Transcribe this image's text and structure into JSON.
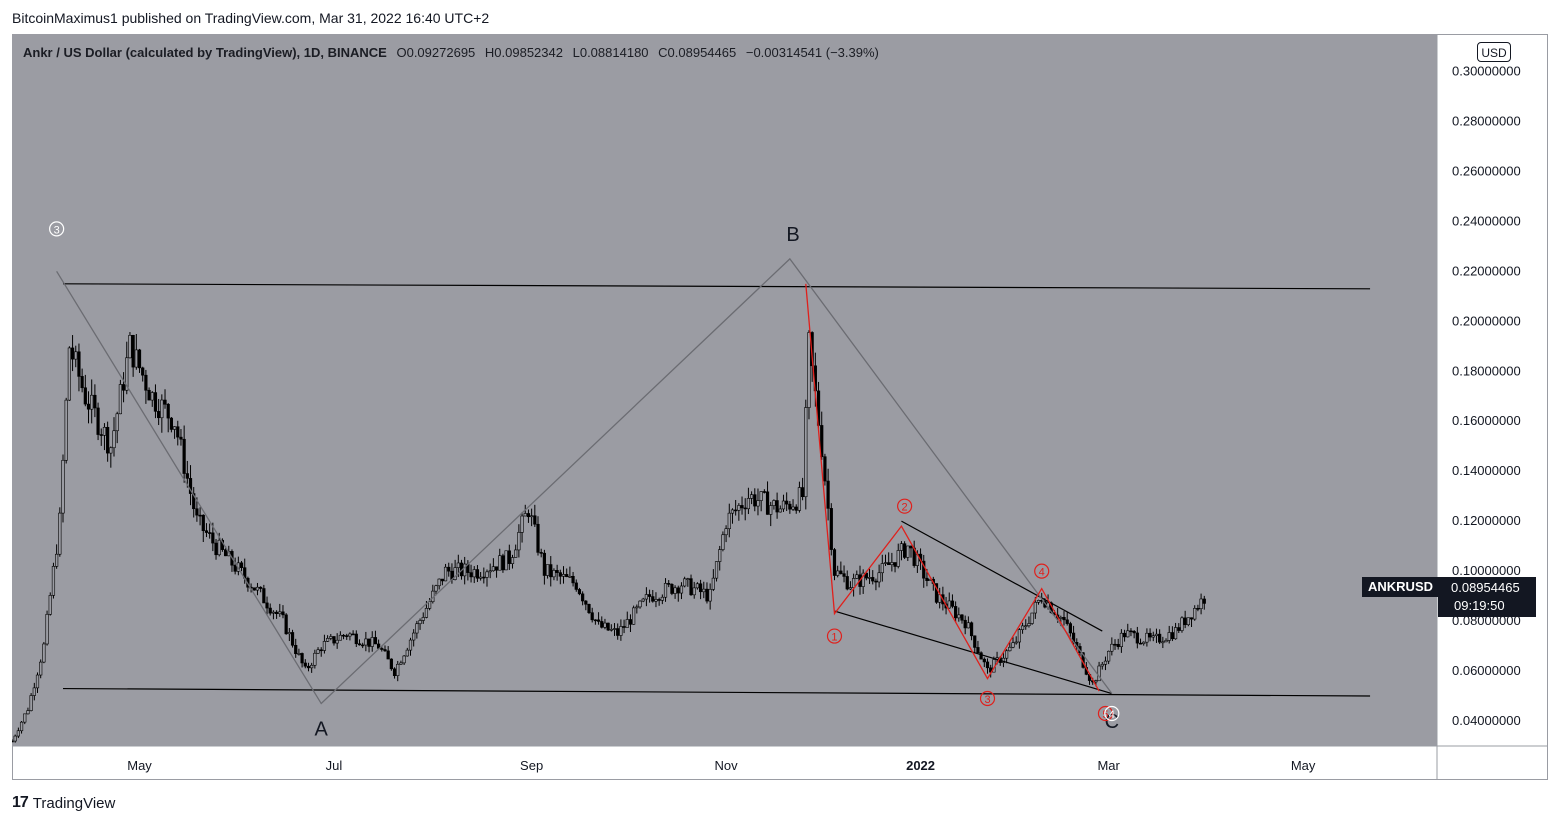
{
  "header": {
    "publish_text": "BitcoinMaximus1 published on TradingView.com, Mar 31, 2022 16:40 UTC+2"
  },
  "legend": {
    "symbol": "Ankr / US Dollar (calculated by TradingView), 1D, BINANCE",
    "open_label": "O",
    "open": "0.09272695",
    "high_label": "H",
    "high": "0.09852342",
    "low_label": "L",
    "low": "0.08814180",
    "close_label": "C",
    "close": "0.08954465",
    "change": "−0.00314541 (−3.39%)"
  },
  "currency_button": "USD",
  "last_price": {
    "symbol": "ANKRUSD",
    "value": "0.08954465",
    "countdown": "09:19:50"
  },
  "footer": {
    "logo_glyph": "17",
    "brand": "TradingView"
  },
  "colors": {
    "plot_bg": "#9b9ca3",
    "candle": "#000000",
    "red_wave": "#e0201c",
    "grey_path": "#6b6c72",
    "trendline": "#000000"
  },
  "chart_data": {
    "type": "candlestick",
    "symbol": "ANKRUSD",
    "interval": "1D",
    "x_range": [
      "2021-03-22",
      "2022-06-12"
    ],
    "ylim": [
      0.03,
      0.315
    ],
    "y_ticks": [
      "0.04000000",
      "0.06000000",
      "0.08000000",
      "0.10000000",
      "0.12000000",
      "0.14000000",
      "0.16000000",
      "0.18000000",
      "0.20000000",
      "0.22000000",
      "0.24000000",
      "0.26000000",
      "0.28000000",
      "0.30000000"
    ],
    "x_ticks": [
      {
        "label": "May",
        "date": "2021-05-01"
      },
      {
        "label": "Jul",
        "date": "2021-07-01"
      },
      {
        "label": "Sep",
        "date": "2021-09-01"
      },
      {
        "label": "Nov",
        "date": "2021-11-01"
      },
      {
        "label": "2022",
        "date": "2022-01-01"
      },
      {
        "label": "Mar",
        "date": "2022-03-01"
      },
      {
        "label": "May",
        "date": "2022-05-01"
      }
    ],
    "price_path": [
      [
        "2021-03-22",
        0.032
      ],
      [
        "2021-03-27",
        0.045
      ],
      [
        "2021-04-01",
        0.07
      ],
      [
        "2021-04-06",
        0.12
      ],
      [
        "2021-04-09",
        0.19
      ],
      [
        "2021-04-14",
        0.17
      ],
      [
        "2021-04-22",
        0.15
      ],
      [
        "2021-04-28",
        0.19
      ],
      [
        "2021-05-05",
        0.17
      ],
      [
        "2021-05-12",
        0.16
      ],
      [
        "2021-05-19",
        0.12
      ],
      [
        "2021-05-25",
        0.11
      ],
      [
        "2021-06-05",
        0.095
      ],
      [
        "2021-06-15",
        0.08
      ],
      [
        "2021-06-22",
        0.06
      ],
      [
        "2021-06-27",
        0.07
      ],
      [
        "2021-07-05",
        0.075
      ],
      [
        "2021-07-15",
        0.07
      ],
      [
        "2021-07-20",
        0.06
      ],
      [
        "2021-07-27",
        0.078
      ],
      [
        "2021-08-05",
        0.1
      ],
      [
        "2021-08-15",
        0.1
      ],
      [
        "2021-08-25",
        0.105
      ],
      [
        "2021-08-31",
        0.125
      ],
      [
        "2021-09-05",
        0.1
      ],
      [
        "2021-09-15",
        0.095
      ],
      [
        "2021-09-22",
        0.078
      ],
      [
        "2021-09-28",
        0.075
      ],
      [
        "2021-10-08",
        0.09
      ],
      [
        "2021-10-18",
        0.095
      ],
      [
        "2021-10-27",
        0.09
      ],
      [
        "2021-11-01",
        0.12
      ],
      [
        "2021-11-08",
        0.13
      ],
      [
        "2021-11-18",
        0.125
      ],
      [
        "2021-11-25",
        0.13
      ],
      [
        "2021-11-27",
        0.19
      ],
      [
        "2021-12-01",
        0.15
      ],
      [
        "2021-12-05",
        0.1
      ],
      [
        "2021-12-10",
        0.095
      ],
      [
        "2021-12-20",
        0.1
      ],
      [
        "2021-12-28",
        0.11
      ],
      [
        "2022-01-06",
        0.09
      ],
      [
        "2022-01-15",
        0.08
      ],
      [
        "2022-01-22",
        0.06
      ],
      [
        "2022-01-30",
        0.07
      ],
      [
        "2022-02-08",
        0.09
      ],
      [
        "2022-02-15",
        0.08
      ],
      [
        "2022-02-24",
        0.055
      ],
      [
        "2022-03-01",
        0.068
      ],
      [
        "2022-03-06",
        0.075
      ],
      [
        "2022-03-15",
        0.072
      ],
      [
        "2022-03-22",
        0.076
      ],
      [
        "2022-03-28",
        0.085
      ],
      [
        "2022-03-31",
        0.0895
      ]
    ],
    "support_line": [
      [
        "2021-04-07",
        0.053
      ],
      [
        "2022-05-22",
        0.05
      ]
    ],
    "resistance_line": [
      [
        "2021-04-07",
        0.215
      ],
      [
        "2022-05-22",
        0.213
      ]
    ],
    "wedge_upper": [
      [
        "2021-12-26",
        0.12
      ],
      [
        "2022-02-27",
        0.076
      ]
    ],
    "wedge_lower": [
      [
        "2021-12-05",
        0.084
      ],
      [
        "2022-03-02",
        0.051
      ]
    ],
    "grey_path": [
      [
        "2021-04-05",
        0.22
      ],
      [
        "2021-06-27",
        0.047
      ],
      [
        "2021-11-21",
        0.225
      ],
      [
        "2022-03-02",
        0.051
      ]
    ],
    "red_path": [
      [
        "2021-11-26",
        0.215
      ],
      [
        "2021-12-05",
        0.083
      ],
      [
        "2021-12-26",
        0.118
      ],
      [
        "2022-01-22",
        0.057
      ],
      [
        "2022-02-08",
        0.093
      ],
      [
        "2022-02-26",
        0.052
      ]
    ],
    "letter_labels": [
      {
        "text": "A",
        "date": "2021-06-27",
        "price": 0.037
      },
      {
        "text": "B",
        "date": "2021-11-22",
        "price": 0.235
      },
      {
        "text": "C",
        "date": "2022-03-02",
        "price": 0.04
      }
    ],
    "circled_labels": [
      {
        "text": "3",
        "date": "2021-04-05",
        "price": 0.237,
        "color": "white"
      },
      {
        "text": "1",
        "date": "2021-12-05",
        "price": 0.074,
        "color": "red"
      },
      {
        "text": "2",
        "date": "2021-12-27",
        "price": 0.126,
        "color": "red"
      },
      {
        "text": "3",
        "date": "2022-01-22",
        "price": 0.049,
        "color": "red"
      },
      {
        "text": "4",
        "date": "2022-02-08",
        "price": 0.1,
        "color": "red"
      },
      {
        "text": "5",
        "date": "2022-02-28",
        "price": 0.043,
        "color": "red"
      },
      {
        "text": "4",
        "date": "2022-03-02",
        "price": 0.043,
        "color": "white"
      }
    ]
  }
}
